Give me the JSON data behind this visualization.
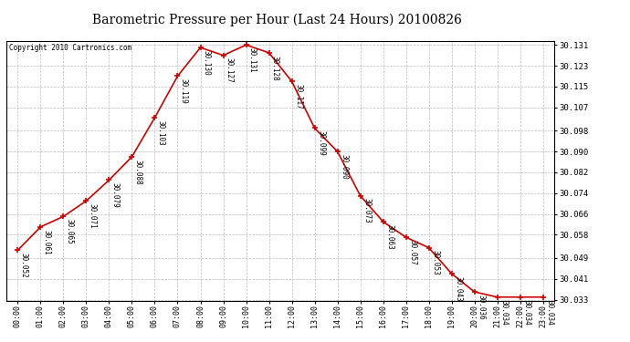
{
  "title": "Barometric Pressure per Hour (Last 24 Hours) 20100826",
  "copyright": "Copyright 2010 Cartronics.com",
  "hours": [
    "00:00",
    "01:00",
    "02:00",
    "03:00",
    "04:00",
    "05:00",
    "06:00",
    "07:00",
    "08:00",
    "09:00",
    "10:00",
    "11:00",
    "12:00",
    "13:00",
    "14:00",
    "15:00",
    "16:00",
    "17:00",
    "18:00",
    "19:00",
    "20:00",
    "21:00",
    "22:00",
    "23:00"
  ],
  "values": [
    30.052,
    30.061,
    30.065,
    30.071,
    30.079,
    30.088,
    30.103,
    30.119,
    30.13,
    30.127,
    30.131,
    30.128,
    30.117,
    30.099,
    30.09,
    30.073,
    30.063,
    30.057,
    30.053,
    30.043,
    30.036,
    30.034,
    30.034,
    30.034
  ],
  "line_color": "#cc0000",
  "marker_color": "#cc0000",
  "bg_color": "#ffffff",
  "grid_color": "#aaaaaa",
  "ylim_min": 30.033,
  "ylim_max": 30.131,
  "yticks": [
    30.033,
    30.041,
    30.049,
    30.058,
    30.066,
    30.074,
    30.082,
    30.09,
    30.098,
    30.107,
    30.115,
    30.123,
    30.131
  ]
}
